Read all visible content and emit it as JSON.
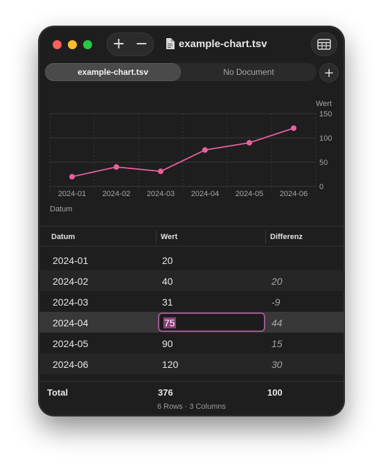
{
  "window": {
    "title": "example-chart.tsv",
    "zoom_in_label": "+",
    "zoom_out_label": "−",
    "add_tab_label": "+"
  },
  "tabs": [
    {
      "label": "example-chart.tsv",
      "active": true
    },
    {
      "label": "No Document",
      "active": false
    }
  ],
  "chart_data": {
    "type": "line",
    "x": [
      "2024-01",
      "2024-02",
      "2024-03",
      "2024-04",
      "2024-05",
      "2024-06"
    ],
    "series": [
      {
        "values": [
          20,
          40,
          31,
          75,
          90,
          120
        ],
        "color": "#e8609f"
      }
    ],
    "xlabel": "Datum",
    "ylabel": "Wert",
    "ylim": [
      0,
      150
    ],
    "yticks": [
      0,
      50,
      100,
      150
    ],
    "grid": true
  },
  "table": {
    "columns": [
      "Datum",
      "Wert",
      "Differenz"
    ],
    "rows": [
      {
        "datum": "2024-01",
        "wert": "20",
        "diff": ""
      },
      {
        "datum": "2024-02",
        "wert": "40",
        "diff": "20"
      },
      {
        "datum": "2024-03",
        "wert": "31",
        "diff": "-9"
      },
      {
        "datum": "2024-04",
        "wert": "75",
        "diff": "44"
      },
      {
        "datum": "2024-05",
        "wert": "90",
        "diff": "15"
      },
      {
        "datum": "2024-06",
        "wert": "120",
        "diff": "30"
      }
    ],
    "selected_row": 3,
    "editing_cell": "wert"
  },
  "footer": {
    "total_label": "Total",
    "total_wert": "376",
    "total_diff": "100",
    "status": "6 Rows · 3 Columns"
  },
  "colors": {
    "accent_line": "#e8609f",
    "edit_border": "#9a5a92"
  }
}
